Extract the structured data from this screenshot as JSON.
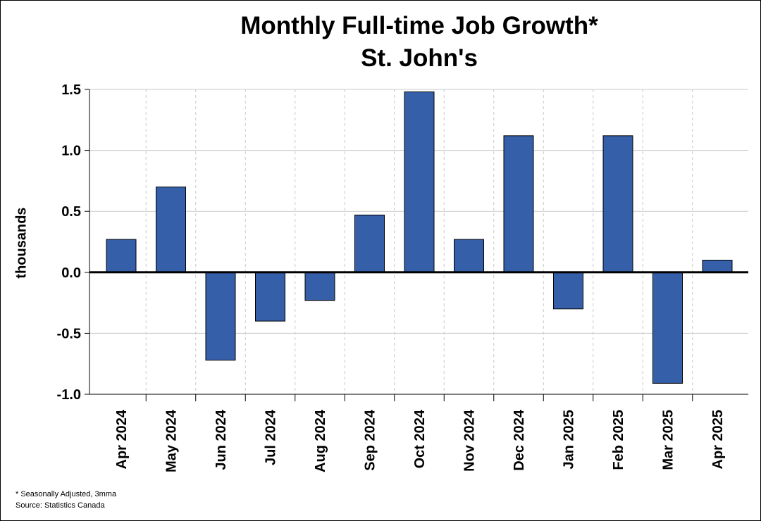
{
  "chart_data": {
    "type": "bar",
    "title": "Monthly Full-time Job Growth*",
    "subtitle": "St. John's",
    "xlabel": "",
    "ylabel": "thousands",
    "ylim": [
      -1.0,
      1.5
    ],
    "yticks": [
      -1.0,
      -0.5,
      0.0,
      0.5,
      1.0,
      1.5
    ],
    "ytick_labels": [
      "-1.0",
      "-0.5",
      "0.0",
      "0.5",
      "1.0",
      "1.5"
    ],
    "categories": [
      "Apr 2024",
      "May 2024",
      "Jun 2024",
      "Jul 2024",
      "Aug 2024",
      "Sep 2024",
      "Oct 2024",
      "Nov 2024",
      "Dec 2024",
      "Jan 2025",
      "Feb 2025",
      "Mar 2025",
      "Apr 2025"
    ],
    "values": [
      0.27,
      0.7,
      -0.72,
      -0.4,
      -0.23,
      0.47,
      1.48,
      0.27,
      1.12,
      -0.3,
      1.12,
      -0.91,
      0.1
    ],
    "bar_color": "#365fa9",
    "grid": true
  },
  "footnotes": {
    "note": "* Seasonally Adjusted, 3mma",
    "source": "Source: Statistics Canada"
  }
}
